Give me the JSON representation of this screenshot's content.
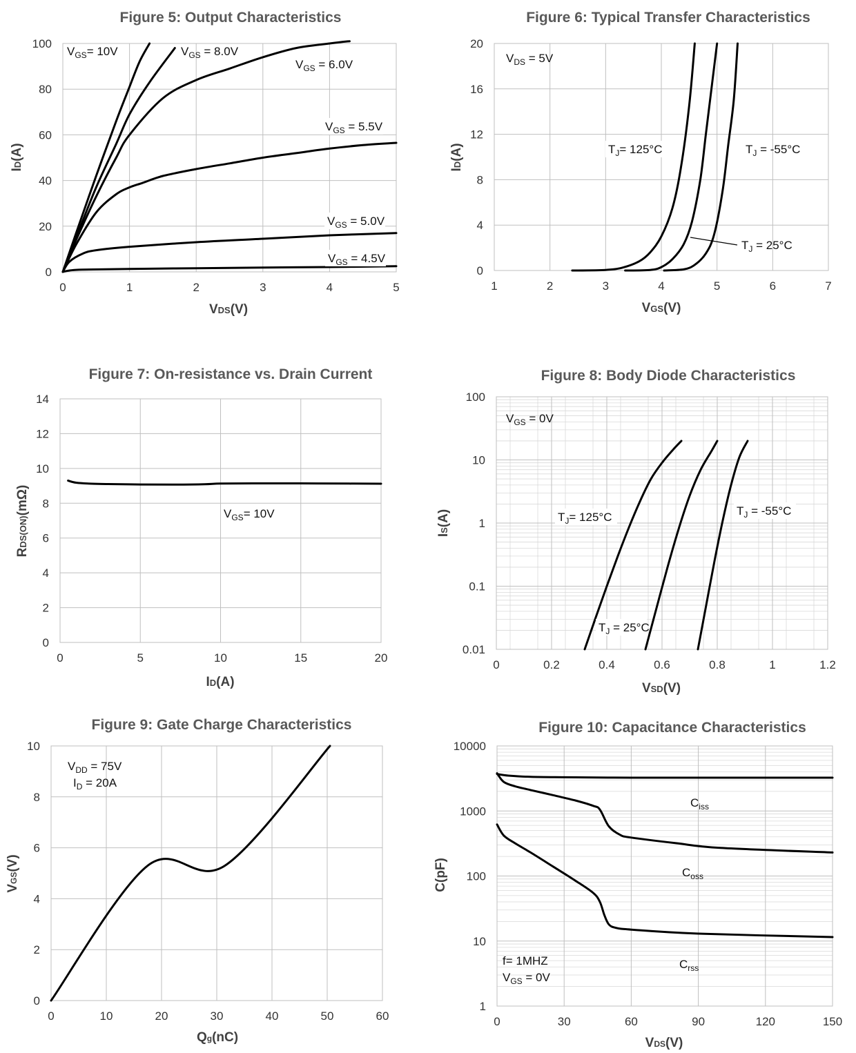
{
  "chart_data": [
    {
      "id": "fig5",
      "type": "line",
      "title": "Figure 5: Output Characteristics",
      "xlabel": "VDS(V)",
      "ylabel": "ID(A)",
      "xlim": [
        0,
        5
      ],
      "ylim": [
        0,
        100
      ],
      "xticks": [
        0,
        1,
        2,
        3,
        4,
        5
      ],
      "yticks": [
        0,
        20,
        40,
        60,
        80,
        100
      ],
      "grid": true,
      "series": [
        {
          "name": "VGS= 10V",
          "color": "#1f1f5c",
          "x": [
            0,
            0.2,
            0.5,
            0.8,
            1.0,
            1.15,
            1.3
          ],
          "y": [
            0,
            17,
            42,
            66,
            81,
            92,
            100
          ]
        },
        {
          "name": "VGS = 8.0V",
          "color": "#000000",
          "x": [
            0,
            0.2,
            0.5,
            0.8,
            1.0,
            1.3,
            1.68
          ],
          "y": [
            0,
            15,
            37,
            56,
            69,
            83,
            98
          ]
        },
        {
          "name": "VGS = 6.0V",
          "color": "#000000",
          "x": [
            0,
            0.2,
            0.5,
            0.8,
            1.0,
            1.5,
            2.0,
            2.5,
            3.0,
            3.5,
            4.0,
            4.3
          ],
          "y": [
            0,
            14,
            33,
            50,
            60,
            76,
            84,
            89,
            94,
            98,
            100,
            101
          ]
        },
        {
          "name": "VGS = 5.5V",
          "color": "#000000",
          "x": [
            0,
            0.2,
            0.5,
            0.8,
            1.0,
            1.2,
            1.5,
            2.0,
            2.5,
            3.0,
            3.5,
            4.0,
            4.5,
            5.0
          ],
          "y": [
            0,
            12,
            26,
            34,
            37,
            39,
            42,
            45,
            47.5,
            50,
            52,
            54,
            55.5,
            56.5
          ]
        },
        {
          "name": "VGS = 5.0V",
          "color": "#000000",
          "x": [
            0,
            0.1,
            0.3,
            0.5,
            1.0,
            2.0,
            3.0,
            4.0,
            5.0
          ],
          "y": [
            0,
            4.5,
            8,
            9.5,
            11,
            13,
            14.5,
            16,
            17
          ]
        },
        {
          "name": "VGS = 4.5V",
          "color": "#000000",
          "x": [
            0,
            0.1,
            0.3,
            1.0,
            2.0,
            3.0,
            4.0,
            5.0
          ],
          "y": [
            0,
            0.6,
            1.0,
            1.3,
            1.6,
            1.9,
            2.1,
            2.5
          ]
        }
      ],
      "annotations": [
        {
          "main": "V",
          "sub": "GS",
          "rest": "= 10V"
        },
        {
          "main": "V",
          "sub": "GS",
          "rest": " = 8.0V"
        },
        {
          "main": "V",
          "sub": "GS",
          "rest": " = 6.0V"
        },
        {
          "main": "V",
          "sub": "GS",
          "rest": " = 5.5V"
        },
        {
          "main": "V",
          "sub": "GS",
          "rest": " = 5.0V"
        },
        {
          "main": "V",
          "sub": "GS",
          "rest": " = 4.5V"
        }
      ]
    },
    {
      "id": "fig6",
      "type": "line",
      "title": "Figure 6: Typical Transfer Characteristics",
      "xlabel": "VGS(V)",
      "ylabel": "ID(A)",
      "xlim": [
        1,
        7
      ],
      "ylim": [
        0,
        20
      ],
      "xticks": [
        1,
        2,
        3,
        4,
        5,
        6,
        7
      ],
      "yticks": [
        0,
        4,
        8,
        12,
        16,
        20
      ],
      "grid": true,
      "series": [
        {
          "name": "TJ= 125°C",
          "color": "#000000",
          "x": [
            2.4,
            3.0,
            3.3,
            3.6,
            3.8,
            4.0,
            4.2,
            4.35,
            4.5,
            4.6
          ],
          "y": [
            0,
            0.05,
            0.25,
            0.8,
            1.6,
            3.0,
            5.5,
            9.0,
            14.5,
            20
          ]
        },
        {
          "name": "TJ = 25°C",
          "color": "#000000",
          "x": [
            3.35,
            3.8,
            4.0,
            4.2,
            4.4,
            4.55,
            4.7,
            4.8,
            4.9,
            5.0
          ],
          "y": [
            0,
            0.05,
            0.3,
            1.0,
            2.3,
            4.3,
            8.0,
            12.0,
            16.0,
            20
          ]
        },
        {
          "name": "TJ = -55°C",
          "color": "#000000",
          "x": [
            4.05,
            4.4,
            4.6,
            4.8,
            4.95,
            5.1,
            5.2,
            5.3,
            5.37
          ],
          "y": [
            0,
            0.1,
            0.5,
            1.5,
            3.2,
            7.0,
            11.0,
            15.0,
            20
          ]
        }
      ],
      "annotations": [
        {
          "main": "V",
          "sub": "DS",
          "rest": " = 5V"
        },
        {
          "main": "T",
          "sub": "J",
          "rest": "= 125°C"
        },
        {
          "main": "T",
          "sub": "J",
          "rest": " = -55°C"
        },
        {
          "main": "T",
          "sub": "J",
          "rest": " = 25°C"
        }
      ]
    },
    {
      "id": "fig7",
      "type": "line",
      "title": "Figure 7: On-resistance vs. Drain Current",
      "xlabel": "ID(A)",
      "ylabel": "RDS(ON)(mΩ)",
      "xlim": [
        0,
        20
      ],
      "ylim": [
        0,
        14
      ],
      "xticks": [
        0,
        5,
        10,
        15,
        20
      ],
      "yticks": [
        0,
        2,
        4,
        6,
        8,
        10,
        12,
        14
      ],
      "grid": true,
      "series": [
        {
          "name": "VGS= 10V",
          "color": "#000000",
          "x": [
            0.5,
            1,
            2,
            3,
            5,
            7,
            9,
            10,
            12,
            15,
            18,
            20
          ],
          "y": [
            9.3,
            9.18,
            9.12,
            9.1,
            9.08,
            9.07,
            9.09,
            9.13,
            9.14,
            9.14,
            9.13,
            9.12
          ]
        }
      ],
      "annotations": [
        {
          "main": "V",
          "sub": "GS",
          "rest": "= 10V"
        }
      ]
    },
    {
      "id": "fig8",
      "type": "line",
      "title": "Figure 8: Body Diode Characteristics",
      "xlabel": "VSD(V)",
      "ylabel": "IS(A)",
      "xlim": [
        0,
        1.2
      ],
      "ylim": [
        0.01,
        100
      ],
      "yscale": "log",
      "xticks": [
        0,
        0.2,
        0.4,
        0.6,
        0.8,
        1,
        1.2
      ],
      "xticklabels": [
        "0",
        "0.2",
        "0.4",
        "0.6",
        "0.8",
        "1",
        "1.2"
      ],
      "yticks": [
        0.01,
        0.1,
        1,
        10,
        100
      ],
      "yticklabels": [
        "0.01",
        "0.1",
        "1",
        "10",
        "100"
      ],
      "grid": true,
      "series": [
        {
          "name": "TJ= 125°C",
          "color": "#000000",
          "x": [
            0.32,
            0.36,
            0.4,
            0.44,
            0.48,
            0.52,
            0.56,
            0.6,
            0.64,
            0.67
          ],
          "y": [
            0.01,
            0.032,
            0.1,
            0.3,
            0.85,
            2.2,
            5.0,
            9.0,
            14.5,
            20
          ]
        },
        {
          "name": "TJ = 25°C",
          "color": "#000000",
          "x": [
            0.54,
            0.58,
            0.62,
            0.66,
            0.7,
            0.74,
            0.78,
            0.8
          ],
          "y": [
            0.01,
            0.045,
            0.2,
            0.8,
            2.7,
            7.0,
            14.0,
            20
          ]
        },
        {
          "name": "TJ = -55°C",
          "color": "#000000",
          "x": [
            0.73,
            0.76,
            0.79,
            0.82,
            0.85,
            0.88,
            0.91
          ],
          "y": [
            0.01,
            0.05,
            0.25,
            1.1,
            4.0,
            11.0,
            20
          ]
        }
      ],
      "annotations": [
        {
          "main": "V",
          "sub": "GS",
          "rest": " = 0V"
        },
        {
          "main": "T",
          "sub": "J",
          "rest": "= 125°C"
        },
        {
          "main": "T",
          "sub": "J",
          "rest": " = -55°C"
        },
        {
          "main": "T",
          "sub": "J",
          "rest": " = 25°C"
        }
      ]
    },
    {
      "id": "fig9",
      "type": "line",
      "title": "Figure 9: Gate Charge Characteristics",
      "xlabel": "Qg(nC)",
      "ylabel": "VGS(V)",
      "xlim": [
        0,
        60
      ],
      "ylim": [
        0,
        10
      ],
      "xticks": [
        0,
        10,
        20,
        30,
        40,
        50,
        60
      ],
      "yticks": [
        0,
        2,
        4,
        6,
        8,
        10
      ],
      "grid": true,
      "series": [
        {
          "name": "VGS",
          "color": "#000000",
          "x": [
            0,
            17.5,
            31.5,
            50.5
          ],
          "y": [
            0,
            5.3,
            5.3,
            10
          ]
        }
      ],
      "annotations": [
        {
          "main": "V",
          "sub": "DD",
          "rest": " = 75V"
        },
        {
          "main": "I",
          "sub": "D",
          "rest": " = 20A"
        }
      ]
    },
    {
      "id": "fig10",
      "type": "line",
      "title": "Figure 10: Capacitance Characteristics",
      "xlabel": "VDS(V)",
      "ylabel": "C(pF)",
      "xlim": [
        0,
        150
      ],
      "ylim": [
        1,
        10000
      ],
      "yscale": "log",
      "xticks": [
        0,
        30,
        60,
        90,
        120,
        150
      ],
      "yticks": [
        1,
        10,
        100,
        1000,
        10000
      ],
      "yticklabels": [
        "1",
        "10",
        "100",
        "1000",
        "10000"
      ],
      "grid": true,
      "series": [
        {
          "name": "Ciss",
          "color": "#000000",
          "x": [
            0,
            5,
            15,
            30,
            60,
            90,
            120,
            150
          ],
          "y": [
            3700,
            3500,
            3350,
            3300,
            3250,
            3250,
            3250,
            3250
          ]
        },
        {
          "name": "Coss",
          "color": "#000000",
          "x": [
            0,
            3,
            8,
            15,
            25,
            35,
            43,
            46,
            50,
            55,
            60,
            80,
            100,
            150
          ],
          "y": [
            3800,
            2800,
            2400,
            2100,
            1750,
            1450,
            1200,
            1050,
            580,
            430,
            390,
            320,
            270,
            230
          ]
        },
        {
          "name": "Crss",
          "color": "#000000",
          "x": [
            0,
            3,
            8,
            15,
            25,
            35,
            43,
            46,
            48,
            50,
            53,
            60,
            90,
            150
          ],
          "y": [
            620,
            420,
            320,
            230,
            140,
            85,
            55,
            40,
            25,
            18,
            16,
            15,
            13,
            11.5
          ]
        }
      ],
      "annotations": [
        {
          "main": "C",
          "sub": "iss",
          "rest": ""
        },
        {
          "main": "C",
          "sub": "oss",
          "rest": ""
        },
        {
          "main": "C",
          "sub": "rss",
          "rest": ""
        },
        {
          "main": "f= 1MHZ",
          "sub": "",
          "rest": ""
        },
        {
          "main": "V",
          "sub": "GS",
          "rest": " = 0V"
        }
      ]
    }
  ]
}
